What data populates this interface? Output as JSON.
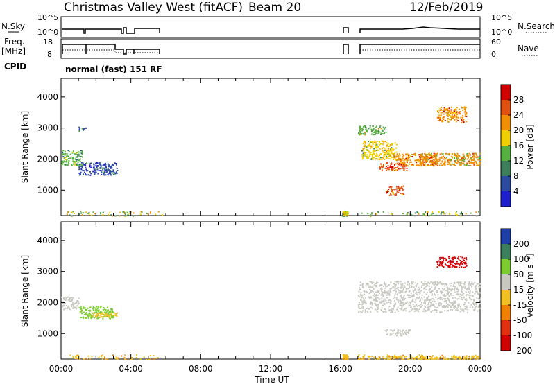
{
  "header": {
    "station": "Christmas Valley West (fitACF)",
    "beam": "Beam 20",
    "date": "12/Feb/2019"
  },
  "summary_panels": {
    "nsky_label": "N.Sky",
    "freq_label_line1": "Freq.",
    "freq_label_line2": "[MHz]",
    "cpid_label": "CPID",
    "nsearch_label": "N.Search",
    "nave_label": "Nave",
    "nsky_ticks": [
      "10^5",
      "10^0"
    ],
    "nsearch_ticks": [
      "10^5",
      "10^0"
    ],
    "freq_ticks": [
      "18",
      "8"
    ],
    "nave_ticks": [
      "60",
      "0"
    ],
    "cpid_text": "normal (fast) 151 RF"
  },
  "colors": {
    "power": [
      "#1f1fd0",
      "#2b4aa0",
      "#3d7f5a",
      "#55b040",
      "#f0d000",
      "#f09000",
      "#e05010",
      "#d00000"
    ],
    "velocity": [
      "#1f3fa8",
      "#3c7f5c",
      "#7ccc30",
      "#c8c8c0",
      "#f0c020",
      "#f08000",
      "#e03010",
      "#d00000"
    ]
  },
  "chart_data": [
    {
      "type": "heatmap",
      "name": "power-panel",
      "ylabel": "Slant Range [km]",
      "xlabel": "Time UT",
      "xlim_hours": [
        0,
        24
      ],
      "ylim_km": [
        180,
        4600
      ],
      "x_ticks": [
        "00:00",
        "04:00",
        "08:00",
        "12:00",
        "16:00",
        "20:00",
        "00:00"
      ],
      "y_ticks": [
        "1000",
        "2000",
        "3000",
        "4000"
      ],
      "colorbar": {
        "label": "Power [dB]",
        "ticks": [
          "4",
          "8",
          "12",
          "16",
          "20",
          "24",
          "28"
        ],
        "range": [
          0,
          32
        ]
      },
      "echo_regions": [
        {
          "t0": 0.0,
          "t1": 1.2,
          "r0": 1800,
          "r1": 2300,
          "value": 12
        },
        {
          "t0": 1.0,
          "t1": 3.2,
          "r0": 1500,
          "r1": 1900,
          "value": 6
        },
        {
          "t0": 1.0,
          "t1": 1.4,
          "r0": 2900,
          "r1": 3050,
          "value": 6
        },
        {
          "t0": 17.2,
          "t1": 19.2,
          "r0": 2000,
          "r1": 2600,
          "value": 16
        },
        {
          "t0": 18.2,
          "t1": 19.8,
          "r0": 1650,
          "r1": 1900,
          "value": 24
        },
        {
          "t0": 19.0,
          "t1": 21.5,
          "r0": 1800,
          "r1": 2200,
          "value": 22
        },
        {
          "t0": 20.5,
          "t1": 24.0,
          "r0": 1800,
          "r1": 2200,
          "value": 20
        },
        {
          "t0": 21.5,
          "t1": 23.2,
          "r0": 3200,
          "r1": 3700,
          "value": 22
        },
        {
          "t0": 18.6,
          "t1": 19.6,
          "r0": 850,
          "r1": 1150,
          "value": 24
        },
        {
          "t0": 17.0,
          "t1": 18.6,
          "r0": 2800,
          "r1": 3100,
          "value": 14
        }
      ]
    },
    {
      "type": "heatmap",
      "name": "velocity-panel",
      "ylabel": "Slant Range [km]",
      "xlabel": "Time UT",
      "xlim_hours": [
        0,
        24
      ],
      "ylim_km": [
        180,
        4600
      ],
      "x_ticks": [
        "00:00",
        "04:00",
        "08:00",
        "12:00",
        "16:00",
        "20:00",
        "00:00"
      ],
      "y_ticks": [
        "1000",
        "2000",
        "3000",
        "4000"
      ],
      "colorbar": {
        "label": "Velocity [m s⁻¹]",
        "ticks": [
          "200",
          "100",
          "50",
          "15",
          "-15",
          "-50",
          "-100",
          "-200"
        ]
      },
      "echo_regions": [
        {
          "t0": 0.0,
          "t1": 1.0,
          "r0": 1800,
          "r1": 2200,
          "value": 0
        },
        {
          "t0": 1.0,
          "t1": 3.0,
          "r0": 1500,
          "r1": 1900,
          "value": 30
        },
        {
          "t0": 1.6,
          "t1": 3.2,
          "r0": 1550,
          "r1": 1700,
          "value": -30
        },
        {
          "t0": 17.0,
          "t1": 24.0,
          "r0": 1700,
          "r1": 2700,
          "value": 0
        },
        {
          "t0": 18.5,
          "t1": 20.0,
          "r0": 950,
          "r1": 1150,
          "value": 0
        },
        {
          "t0": 21.5,
          "t1": 23.2,
          "r0": 3150,
          "r1": 3500,
          "value": -250
        },
        {
          "t0": 17.0,
          "t1": 24.0,
          "r0": 180,
          "r1": 300,
          "value": -30
        }
      ]
    }
  ]
}
